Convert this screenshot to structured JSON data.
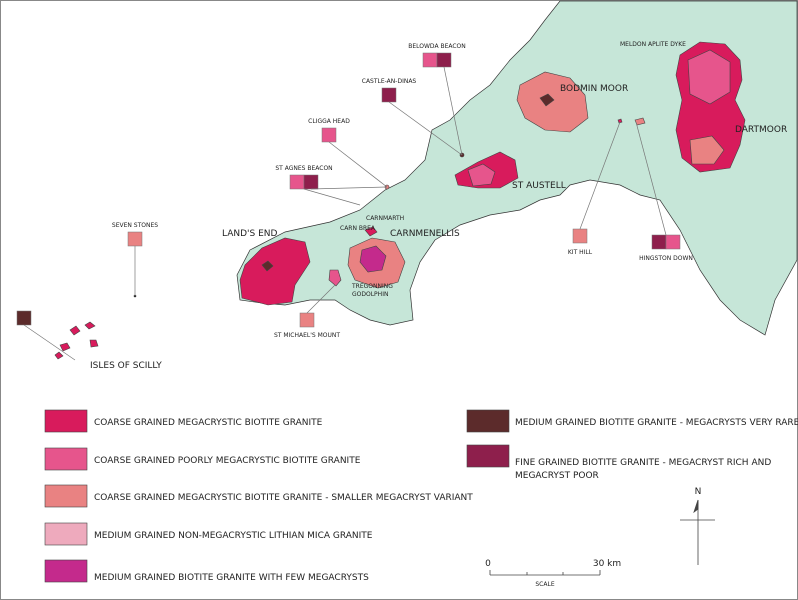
{
  "places": {
    "belowda_beacon": "BELOWDA BEACON",
    "castle_an_dinas": "CASTLE-AN-DINAS",
    "cligga_head": "CLIGGA HEAD",
    "st_agnes_beacon": "ST AGNES BEACON",
    "seven_stones": "SEVEN STONES",
    "lands_end": "LAND'S END",
    "carnmarth": "CARNMARTH",
    "carn_brea": "CARN BREA",
    "carnmenellis": "CARNMENELLIS",
    "tregonning": "TREGONNING",
    "godolphin": "GODOLPHIN",
    "st_michaels_mount": "ST MICHAEL'S MOUNT",
    "isles_of_scilly": "ISLES OF SCILLY",
    "bodmin_moor": "BODMIN MOOR",
    "st_austell": "ST AUSTELL",
    "kit_hill": "KIT HILL",
    "hingston_down": "HINGSTON DOWN",
    "meldon": "MELDON APLITE DYKE",
    "dartmoor": "DARTMOOR"
  },
  "legend": [
    {
      "label": "COARSE GRAINED MEGACRYSTIC BIOTITE GRANITE",
      "color": "#d81b5c"
    },
    {
      "label": "COARSE GRAINED POORLY MEGACRYSTIC BIOTITE GRANITE",
      "color": "#e6558c"
    },
    {
      "label": "COARSE GRAINED MEGACRYSTIC BIOTITE GRANITE - SMALLER MEGACRYST VARIANT",
      "color": "#e98282"
    },
    {
      "label": "MEDIUM GRAINED NON-MEGACRYSTIC LITHIAN MICA GRANITE",
      "color": "#eeaabd"
    },
    {
      "label": "MEDIUM GRAINED BIOTITE GRANITE WITH FEW MEGACRYSTS",
      "color": "#c42a8c"
    },
    {
      "label": "MEDIUM GRAINED BIOTITE GRANITE - MEGACRYSTS VERY RARE",
      "color": "#5c2b2b"
    },
    {
      "label": "FINE GRAINED BIOTITE GRANITE - MEGACRYST RICH AND",
      "label2": "MEGACRYST POOR",
      "color": "#8e1f4c"
    }
  ],
  "scale": {
    "start": "0",
    "end": "30 km",
    "title": "SCALE"
  },
  "north": "N"
}
